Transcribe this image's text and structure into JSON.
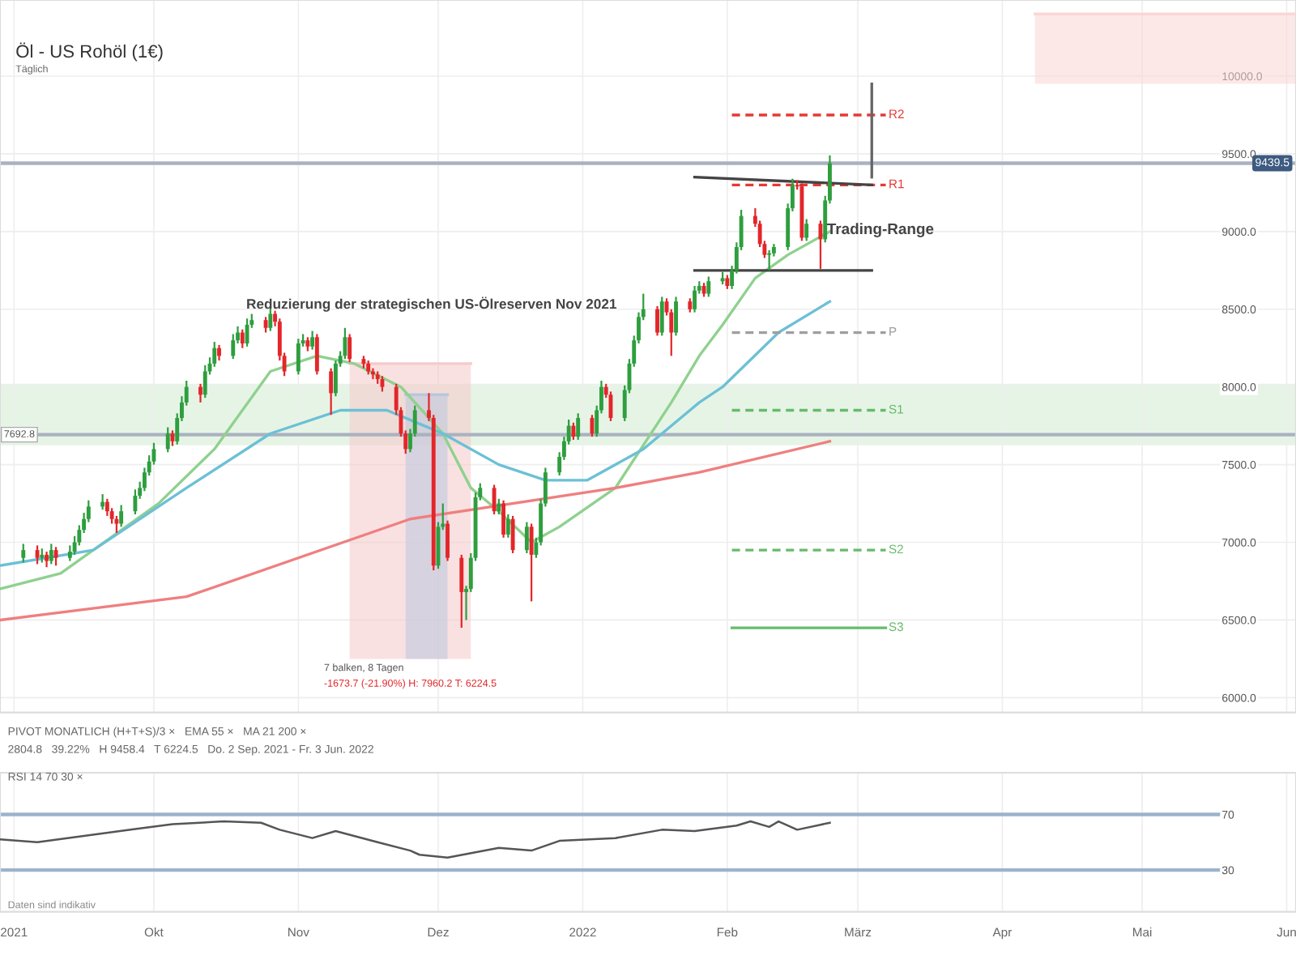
{
  "chart_data": [
    {
      "type": "candlestick",
      "title": "Öl - US Rohöl (1€)",
      "subtitle": "Täglich",
      "x": [
        "2021-09-03",
        "2021-09-06",
        "2021-09-07",
        "2021-09-08",
        "2021-09-09",
        "2021-09-10",
        "2021-09-13",
        "2021-09-14",
        "2021-09-15",
        "2021-09-16",
        "2021-09-17",
        "2021-09-20",
        "2021-09-21",
        "2021-09-22",
        "2021-09-23",
        "2021-09-24",
        "2021-09-27",
        "2021-09-28",
        "2021-09-29",
        "2021-09-30",
        "2021-10-01",
        "2021-10-04",
        "2021-10-05",
        "2021-10-06",
        "2021-10-07",
        "2021-10-08",
        "2021-10-11",
        "2021-10-12",
        "2021-10-13",
        "2021-10-14",
        "2021-10-15",
        "2021-10-18",
        "2021-10-19",
        "2021-10-20",
        "2021-10-21",
        "2021-10-22",
        "2021-10-25",
        "2021-10-26",
        "2021-10-27",
        "2021-10-28",
        "2021-10-29",
        "2021-11-01",
        "2021-11-02",
        "2021-11-03",
        "2021-11-04",
        "2021-11-05",
        "2021-11-08",
        "2021-11-09",
        "2021-11-10",
        "2021-11-11",
        "2021-11-12",
        "2021-11-15",
        "2021-11-16",
        "2021-11-17",
        "2021-11-18",
        "2021-11-19",
        "2021-11-22",
        "2021-11-23",
        "2021-11-24",
        "2021-11-25",
        "2021-11-26",
        "2021-11-29",
        "2021-11-30",
        "2021-12-01",
        "2021-12-02",
        "2021-12-03",
        "2021-12-06",
        "2021-12-07",
        "2021-12-08",
        "2021-12-09",
        "2021-12-10",
        "2021-12-13",
        "2021-12-14",
        "2021-12-15",
        "2021-12-16",
        "2021-12-17",
        "2021-12-20",
        "2021-12-21",
        "2021-12-22",
        "2021-12-23",
        "2021-12-24",
        "2021-12-27",
        "2021-12-28",
        "2021-12-29",
        "2021-12-30",
        "2021-12-31",
        "2022-01-03",
        "2022-01-04",
        "2022-01-05",
        "2022-01-06",
        "2022-01-07",
        "2022-01-10",
        "2022-01-11",
        "2022-01-12",
        "2022-01-13",
        "2022-01-14",
        "2022-01-17",
        "2022-01-18",
        "2022-01-19",
        "2022-01-20",
        "2022-01-21",
        "2022-01-24",
        "2022-01-25",
        "2022-01-26",
        "2022-01-27",
        "2022-01-28",
        "2022-01-31",
        "2022-02-01",
        "2022-02-02",
        "2022-02-03",
        "2022-02-04",
        "2022-02-07",
        "2022-02-08",
        "2022-02-09",
        "2022-02-10",
        "2022-02-11",
        "2022-02-14",
        "2022-02-15",
        "2022-02-16",
        "2022-02-17",
        "2022-02-18",
        "2022-02-21",
        "2022-02-22",
        "2022-02-23"
      ],
      "ohlc": [
        [
          6900,
          6990,
          6870,
          6950
        ],
        [
          6950,
          6980,
          6860,
          6900
        ],
        [
          6900,
          6960,
          6870,
          6920
        ],
        [
          6920,
          6940,
          6840,
          6880
        ],
        [
          6880,
          6990,
          6860,
          6950
        ],
        [
          6950,
          6970,
          6850,
          6900
        ],
        [
          6900,
          6980,
          6880,
          6940
        ],
        [
          6940,
          7040,
          6920,
          7000
        ],
        [
          7000,
          7110,
          6980,
          7080
        ],
        [
          7080,
          7190,
          7060,
          7150
        ],
        [
          7150,
          7270,
          7130,
          7230
        ],
        [
          7230,
          7310,
          7210,
          7260
        ],
        [
          7260,
          7280,
          7170,
          7200
        ],
        [
          7200,
          7220,
          7120,
          7150
        ],
        [
          7150,
          7170,
          7060,
          7120
        ],
        [
          7120,
          7240,
          7100,
          7200
        ],
        [
          7200,
          7340,
          7180,
          7300
        ],
        [
          7300,
          7390,
          7280,
          7350
        ],
        [
          7350,
          7480,
          7330,
          7450
        ],
        [
          7450,
          7560,
          7430,
          7520
        ],
        [
          7520,
          7640,
          7500,
          7600
        ],
        [
          7600,
          7740,
          7580,
          7700
        ],
        [
          7700,
          7720,
          7620,
          7650
        ],
        [
          7650,
          7830,
          7630,
          7800
        ],
        [
          7800,
          7940,
          7780,
          7900
        ],
        [
          7900,
          8040,
          7880,
          8000
        ],
        [
          8000,
          8020,
          7900,
          7950
        ],
        [
          7950,
          8140,
          7930,
          8100
        ],
        [
          8100,
          8190,
          8080,
          8150
        ],
        [
          8150,
          8290,
          8130,
          8250
        ],
        [
          8250,
          8270,
          8170,
          8200
        ],
        [
          8200,
          8340,
          8180,
          8300
        ],
        [
          8300,
          8390,
          8280,
          8350
        ],
        [
          8350,
          8370,
          8250,
          8280
        ],
        [
          8280,
          8440,
          8260,
          8400
        ],
        [
          8400,
          8470,
          8380,
          8430
        ],
        [
          8430,
          8450,
          8350,
          8380
        ],
        [
          8380,
          8510,
          8360,
          8470
        ],
        [
          8470,
          8490,
          8390,
          8420
        ],
        [
          8420,
          8440,
          8170,
          8200
        ],
        [
          8200,
          8220,
          8070,
          8100
        ],
        [
          8100,
          8310,
          8080,
          8280
        ],
        [
          8280,
          8340,
          8260,
          8300
        ],
        [
          8300,
          8320,
          8230,
          8260
        ],
        [
          8260,
          8360,
          8240,
          8320
        ],
        [
          8320,
          8340,
          8080,
          8100
        ],
        [
          8100,
          8120,
          7820,
          7960
        ],
        [
          7960,
          8170,
          7940,
          8150
        ],
        [
          8150,
          8230,
          8130,
          8200
        ],
        [
          8200,
          8380,
          8180,
          8320
        ],
        [
          8320,
          8340,
          8160,
          8180
        ],
        [
          8180,
          8200,
          8120,
          8150
        ],
        [
          8150,
          8170,
          8080,
          8100
        ],
        [
          8100,
          8120,
          8050,
          8080
        ],
        [
          8080,
          8100,
          8020,
          8050
        ],
        [
          8050,
          8070,
          7970,
          8000
        ],
        [
          8000,
          8020,
          7820,
          7850
        ],
        [
          7850,
          7870,
          7680,
          7700
        ],
        [
          7700,
          7720,
          7570,
          7600
        ],
        [
          7600,
          7730,
          7580,
          7700
        ],
        [
          7700,
          7880,
          7680,
          7850
        ],
        [
          7850,
          7960,
          7780,
          7800
        ],
        [
          7800,
          7820,
          6820,
          6850
        ],
        [
          6850,
          7130,
          6830,
          7100
        ],
        [
          7100,
          7250,
          7080,
          7120
        ],
        [
          7120,
          7140,
          6880,
          6900
        ],
        [
          6900,
          6920,
          6450,
          6680
        ],
        [
          6680,
          6720,
          6500,
          6700
        ],
        [
          6700,
          6930,
          6680,
          6900
        ],
        [
          6900,
          7320,
          6880,
          7290
        ],
        [
          7290,
          7380,
          7270,
          7350
        ],
        [
          7350,
          7370,
          7180,
          7200
        ],
        [
          7200,
          7280,
          7180,
          7250
        ],
        [
          7250,
          7270,
          7030,
          7050
        ],
        [
          7050,
          7180,
          7030,
          7150
        ],
        [
          7150,
          7170,
          6930,
          6950
        ],
        [
          6950,
          7130,
          6930,
          7100
        ],
        [
          7100,
          7120,
          6620,
          6920
        ],
        [
          6920,
          7030,
          6900,
          7000
        ],
        [
          7000,
          7280,
          6980,
          7250
        ],
        [
          7250,
          7480,
          7230,
          7450
        ],
        [
          7450,
          7580,
          7430,
          7550
        ],
        [
          7550,
          7680,
          7530,
          7650
        ],
        [
          7650,
          7790,
          7630,
          7750
        ],
        [
          7750,
          7770,
          7660,
          7680
        ],
        [
          7680,
          7830,
          7660,
          7800
        ],
        [
          7800,
          7820,
          7680,
          7700
        ],
        [
          7700,
          7880,
          7680,
          7850
        ],
        [
          7850,
          8040,
          7830,
          8000
        ],
        [
          8000,
          8020,
          7930,
          7950
        ],
        [
          7950,
          7970,
          7780,
          7800
        ],
        [
          7800,
          8010,
          7780,
          7980
        ],
        [
          7980,
          8180,
          7960,
          8150
        ],
        [
          8150,
          8330,
          8130,
          8300
        ],
        [
          8300,
          8480,
          8280,
          8450
        ],
        [
          8450,
          8600,
          8430,
          8500
        ],
        [
          8500,
          8520,
          8330,
          8350
        ],
        [
          8350,
          8580,
          8330,
          8550
        ],
        [
          8550,
          8570,
          8460,
          8480
        ],
        [
          8480,
          8500,
          8200,
          8350
        ],
        [
          8350,
          8580,
          8330,
          8550
        ],
        [
          8550,
          8570,
          8480,
          8500
        ],
        [
          8500,
          8650,
          8480,
          8620
        ],
        [
          8620,
          8680,
          8600,
          8650
        ],
        [
          8650,
          8670,
          8580,
          8600
        ],
        [
          8600,
          8710,
          8580,
          8680
        ],
        [
          8680,
          8740,
          8660,
          8700
        ],
        [
          8700,
          8720,
          8630,
          8650
        ],
        [
          8650,
          8780,
          8630,
          8750
        ],
        [
          8750,
          8930,
          8730,
          8900
        ],
        [
          8900,
          9140,
          8880,
          9100
        ],
        [
          9100,
          9150,
          9030,
          9050
        ],
        [
          9050,
          9070,
          8900,
          8920
        ],
        [
          8920,
          8940,
          8830,
          8850
        ],
        [
          8850,
          8880,
          8750,
          8860
        ],
        [
          8860,
          8920,
          8840,
          8900
        ],
        [
          8900,
          9180,
          8880,
          9150
        ],
        [
          9150,
          9340,
          9130,
          9300
        ],
        [
          9300,
          9330,
          9270,
          9290
        ],
        [
          9290,
          9310,
          8940,
          8960
        ],
        [
          8960,
          9080,
          8940,
          9050
        ],
        [
          9050,
          9070,
          8760,
          8950
        ],
        [
          8950,
          9230,
          8930,
          9200
        ],
        [
          9200,
          9490,
          9180,
          9439.5
        ]
      ],
      "colors": [
        "#2e9e3e",
        "#e3262a",
        "#2e9e3e",
        "#e3262a",
        "#2e9e3e",
        "#e3262a",
        "#2e9e3e",
        "#2e9e3e",
        "#2e9e3e",
        "#2e9e3e",
        "#2e9e3e",
        "#2e9e3e",
        "#e3262a",
        "#e3262a",
        "#e3262a",
        "#2e9e3e",
        "#2e9e3e",
        "#2e9e3e",
        "#2e9e3e",
        "#2e9e3e",
        "#2e9e3e",
        "#2e9e3e",
        "#e3262a",
        "#2e9e3e",
        "#2e9e3e",
        "#2e9e3e",
        "#e3262a",
        "#2e9e3e",
        "#2e9e3e",
        "#2e9e3e",
        "#e3262a",
        "#2e9e3e",
        "#2e9e3e",
        "#e3262a",
        "#2e9e3e",
        "#2e9e3e",
        "#e3262a",
        "#2e9e3e",
        "#e3262a",
        "#e3262a",
        "#e3262a",
        "#2e9e3e",
        "#2e9e3e",
        "#e3262a",
        "#2e9e3e",
        "#e3262a",
        "#e3262a",
        "#2e9e3e",
        "#2e9e3e",
        "#2e9e3e",
        "#e3262a",
        "#e3262a",
        "#e3262a",
        "#e3262a",
        "#e3262a",
        "#e3262a",
        "#e3262a",
        "#e3262a",
        "#e3262a",
        "#2e9e3e",
        "#2e9e3e",
        "#e3262a",
        "#e3262a",
        "#2e9e3e",
        "#2e9e3e",
        "#e3262a",
        "#e3262a",
        "#2e9e3e",
        "#2e9e3e",
        "#2e9e3e",
        "#2e9e3e",
        "#e3262a",
        "#2e9e3e",
        "#e3262a",
        "#2e9e3e",
        "#e3262a",
        "#2e9e3e",
        "#e3262a",
        "#2e9e3e",
        "#2e9e3e",
        "#2e9e3e",
        "#2e9e3e",
        "#2e9e3e",
        "#2e9e3e",
        "#e3262a",
        "#2e9e3e",
        "#e3262a",
        "#2e9e3e",
        "#2e9e3e",
        "#e3262a",
        "#e3262a",
        "#2e9e3e",
        "#2e9e3e",
        "#2e9e3e",
        "#2e9e3e",
        "#2e9e3e",
        "#e3262a",
        "#2e9e3e",
        "#e3262a",
        "#e3262a",
        "#2e9e3e",
        "#e3262a",
        "#2e9e3e",
        "#2e9e3e",
        "#e3262a",
        "#2e9e3e",
        "#2e9e3e",
        "#e3262a",
        "#2e9e3e",
        "#2e9e3e",
        "#2e9e3e",
        "#e3262a",
        "#e3262a",
        "#e3262a",
        "#2e9e3e",
        "#2e9e3e",
        "#2e9e3e",
        "#2e9e3e",
        "#e3262a",
        "#e3262a",
        "#2e9e3e",
        "#e3262a",
        "#2e9e3e",
        "#2e9e3e"
      ],
      "series": [
        {
          "type": "line",
          "color": "#f6c9c9",
          "x": [
            "2021-11-12",
            "2021-12-08"
          ],
          "values": [
            8150,
            8150
          ],
          "lower": [
            6250,
            6250
          ],
          "upper": [
            8150,
            8150
          ]
        },
        {
          "type": "line",
          "color": "#b9c6de",
          "x": [
            "2021-11-24",
            "2021-12-03"
          ],
          "values": [
            7950,
            7950
          ],
          "lower": [
            6250,
            6250
          ],
          "upper": [
            7950,
            7950
          ]
        },
        {
          "type": "line",
          "color": "#fbd6d6",
          "x": [
            "2022-04-08",
            "2022-06-03"
          ],
          "values": [
            10400,
            10400
          ],
          "lower": [
            9950,
            9950
          ],
          "upper": [
            10400,
            10400
          ]
        },
        {
          "type": "line",
          "color": "#8fd18f",
          "x": [
            "2021-08-29",
            "2021-09-11",
            "2021-09-18",
            "2021-10-02",
            "2021-10-14",
            "2021-10-26",
            "2021-11-05",
            "2021-11-13",
            "2021-11-23",
            "2021-12-02",
            "2021-12-08",
            "2021-12-14",
            "2021-12-21",
            "2021-12-27",
            "2022-01-08",
            "2022-01-20",
            "2022-01-26",
            "2022-01-31",
            "2022-02-07",
            "2022-02-14",
            "2022-02-23"
          ],
          "values": [
            6700,
            6800,
            6950,
            7250,
            7600,
            8100,
            8200,
            8150,
            8000,
            7700,
            7350,
            7200,
            7000,
            7100,
            7350,
            7900,
            8200,
            8400,
            8700,
            8850,
            9000
          ]
        },
        {
          "type": "line",
          "color": "#6cc0d6",
          "x": [
            "2021-08-29",
            "2021-09-18",
            "2021-10-08",
            "2021-10-26",
            "2021-11-10",
            "2021-11-20",
            "2021-12-02",
            "2021-12-14",
            "2021-12-24",
            "2022-01-02",
            "2022-01-14",
            "2022-01-26",
            "2022-01-31",
            "2022-02-12",
            "2022-02-23"
          ],
          "values": [
            6850,
            6950,
            7350,
            7700,
            7850,
            7850,
            7700,
            7500,
            7400,
            7400,
            7600,
            7900,
            8000,
            8350,
            8550
          ]
        },
        {
          "type": "line",
          "color": "#ef7f7f",
          "x": [
            "2021-08-29",
            "2021-10-08",
            "2021-11-25",
            "2022-01-08",
            "2022-01-26",
            "2022-02-23"
          ],
          "values": [
            6500,
            6650,
            7150,
            7350,
            7450,
            7650
          ]
        },
        {
          "type": "line",
          "name": "R2",
          "color": "#e53935",
          "line_style": "dashed",
          "x": [
            "2022-02-02",
            "2022-03-07"
          ],
          "values": [
            9750,
            9750
          ]
        },
        {
          "type": "line",
          "name": "R1",
          "color": "#e53935",
          "line_style": "dashed",
          "x": [
            "2022-02-02",
            "2022-03-07"
          ],
          "values": [
            9300,
            9300
          ]
        },
        {
          "type": "line",
          "name": "P",
          "color": "#9e9e9e",
          "line_style": "dashed",
          "x": [
            "2022-02-02",
            "2022-03-07"
          ],
          "values": [
            8350,
            8350
          ]
        },
        {
          "type": "line",
          "name": "S1",
          "color": "#66bb6a",
          "line_style": "dashed",
          "x": [
            "2022-02-02",
            "2022-03-07"
          ],
          "values": [
            7850,
            7850
          ]
        },
        {
          "type": "line",
          "name": "S2",
          "color": "#66bb6a",
          "line_style": "dashed",
          "x": [
            "2022-02-02",
            "2022-03-07"
          ],
          "values": [
            6950,
            6950
          ]
        },
        {
          "type": "line",
          "name": "S3",
          "color": "#66bb6a",
          "line_style": "solid",
          "x": [
            "2022-02-02",
            "2022-03-07"
          ],
          "values": [
            6450,
            6450
          ]
        },
        {
          "type": "line",
          "color": "#444444",
          "x": [
            "2022-01-25",
            "2022-03-04"
          ],
          "values": [
            9350,
            9300
          ]
        },
        {
          "type": "line",
          "color": "#444444",
          "x": [
            "2022-01-25",
            "2022-03-04"
          ],
          "values": [
            8750,
            8750
          ]
        },
        {
          "type": "line",
          "color": "#666666",
          "x": [
            "2022-03-04",
            "2022-03-04"
          ],
          "values": [
            9950,
            9350
          ]
        }
      ],
      "ref_lines": [
        {
          "axis": "y",
          "value": 9439.5,
          "label": "9439.5",
          "color": "#aab2c0"
        },
        {
          "axis": "y",
          "value": 7692.8,
          "label": "7692.8",
          "color": "#aab2c0"
        }
      ],
      "bands": [
        {
          "axis": "y",
          "from": 7625,
          "to": 8020,
          "color": "#dcefdc"
        }
      ],
      "annotations": [
        "Reduzierung der strategischen US-Ölreserven Nov 2021",
        "Trading-Range",
        "7 balken, 8 Tagen",
        "-1673.7 (-21.90%) H: 7960.2 T: 6224.5",
        "PIVOT MONATLICH (H+T+S)/3 ×   EMA 55 ×   MA 21 200 ×",
        "2804.8   39.22%   H 9458.4   T 6224.5   Do. 2 Sep. 2021 - Fr. 3 Jun. 2022"
      ],
      "xlim": [
        "2021-08-29",
        "2022-06-03"
      ],
      "xticks": [
        {
          "value": "2021-09-01",
          "label": null
        },
        {
          "value": "2021-10-01",
          "label": null
        },
        {
          "value": "2021-11-01",
          "label": null
        },
        {
          "value": "2021-12-01",
          "label": null
        },
        {
          "value": "2022-01-01",
          "label": null
        },
        {
          "value": "2022-02-01",
          "label": null
        },
        {
          "value": "2022-03-01",
          "label": null
        },
        {
          "value": "2022-04-01",
          "label": null
        },
        {
          "value": "2022-05-01",
          "label": null
        },
        {
          "value": "2022-06-01",
          "label": null
        }
      ],
      "ylim": [
        5905,
        10490
      ],
      "yticks": [
        {
          "value": 6000,
          "label": "6000.0"
        },
        {
          "value": 6500,
          "label": "6500.0"
        },
        {
          "value": 7000,
          "label": "7000.0"
        },
        {
          "value": 7500,
          "label": "7500.0"
        },
        {
          "value": 8000,
          "label": "8000.0"
        },
        {
          "value": 8500,
          "label": "8500.0"
        },
        {
          "value": 9000,
          "label": "9000.0"
        },
        {
          "value": 9500,
          "label": "9500.0"
        },
        {
          "value": 10000,
          "label": "10000.0"
        }
      ],
      "grid": true,
      "tick_labels": "y"
    },
    {
      "type": "line",
      "color": "#555555",
      "x": [
        "2021-08-29",
        "2021-09-06",
        "2021-09-26",
        "2021-10-05",
        "2021-10-16",
        "2021-10-24",
        "2021-10-28",
        "2021-11-04",
        "2021-11-09",
        "2021-11-18",
        "2021-11-25",
        "2021-11-27",
        "2021-12-03",
        "2021-12-14",
        "2021-12-21",
        "2021-12-27",
        "2022-01-08",
        "2022-01-18",
        "2022-01-25",
        "2022-02-03",
        "2022-02-06",
        "2022-02-10",
        "2022-02-12",
        "2022-02-16",
        "2022-02-23"
      ],
      "values": [
        52,
        50,
        59,
        63,
        65,
        64,
        59,
        53,
        58,
        50,
        44,
        41,
        39,
        46,
        44,
        51,
        53,
        59,
        58,
        62,
        65,
        61,
        65,
        59,
        64
      ],
      "ref_lines": [
        {
          "axis": "y",
          "value": 70,
          "color": "#9db3cc"
        },
        {
          "axis": "y",
          "value": 30,
          "color": "#9db3cc"
        }
      ],
      "annotations": [
        "RSI 14 70 30 ×",
        "Daten sind indikativ"
      ],
      "xlim": [
        "2021-08-29",
        "2022-06-03"
      ],
      "xticks": [
        {
          "value": "2021-09-01",
          "label": "2021"
        },
        {
          "value": "2021-10-01",
          "label": "Okt"
        },
        {
          "value": "2021-11-01",
          "label": "Nov"
        },
        {
          "value": "2021-12-01",
          "label": "Dez"
        },
        {
          "value": "2022-01-01",
          "label": "2022"
        },
        {
          "value": "2022-02-01",
          "label": "Feb"
        },
        {
          "value": "2022-03-01",
          "label": "März"
        },
        {
          "value": "2022-04-01",
          "label": "Apr"
        },
        {
          "value": "2022-05-01",
          "label": "Mai"
        },
        {
          "value": "2022-06-01",
          "label": "Jun"
        }
      ],
      "ylim": [
        0,
        100
      ],
      "yticks": [
        70,
        30
      ],
      "grid": "x"
    }
  ]
}
